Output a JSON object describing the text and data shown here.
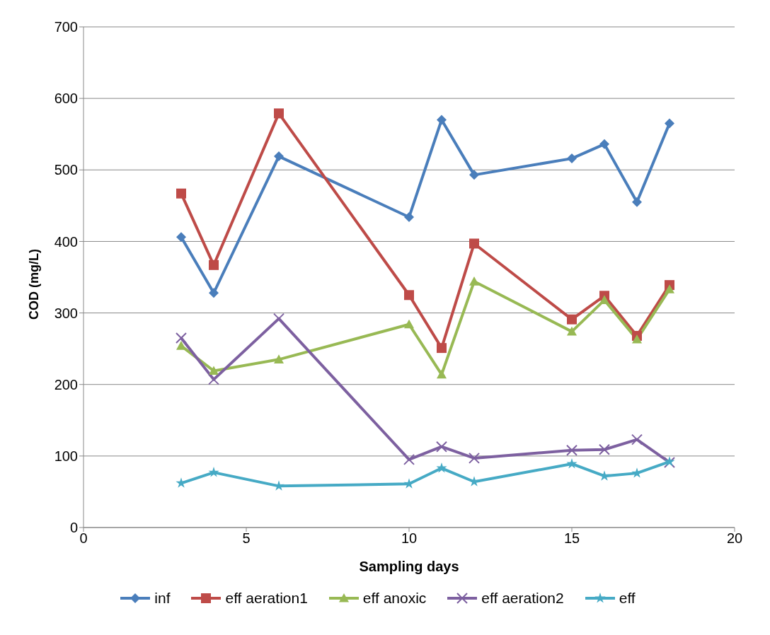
{
  "chart_data": {
    "type": "line",
    "xlabel": "Sampling days",
    "ylabel": "COD (mg/L)",
    "x": [
      3,
      4,
      6,
      10,
      11,
      12,
      15,
      16,
      17,
      18
    ],
    "xlim": [
      0,
      20
    ],
    "xticks": [
      0,
      5,
      10,
      15,
      20
    ],
    "ylim": [
      0,
      700
    ],
    "yticks": [
      0,
      100,
      200,
      300,
      400,
      500,
      600,
      700
    ],
    "grid": "y",
    "legend": "bottom",
    "series": [
      {
        "name": "inf",
        "color": "#4a7ebb",
        "marker": "diamond",
        "values": [
          406,
          328,
          519,
          434,
          570,
          493,
          516,
          536,
          455,
          565
        ]
      },
      {
        "name": "eff aeration1",
        "color": "#be4b48",
        "marker": "square",
        "values": [
          467,
          367,
          579,
          325,
          251,
          397,
          291,
          324,
          268,
          339
        ]
      },
      {
        "name": "eff anoxic",
        "color": "#98b954",
        "marker": "triangle",
        "values": [
          254,
          219,
          235,
          284,
          214,
          344,
          274,
          318,
          263,
          333
        ]
      },
      {
        "name": "eff aeration2",
        "color": "#7d60a0",
        "marker": "cross",
        "values": [
          265,
          207,
          292,
          95,
          113,
          97,
          108,
          109,
          123,
          91
        ]
      },
      {
        "name": "eff",
        "color": "#46aac5",
        "marker": "star",
        "values": [
          62,
          77,
          58,
          61,
          83,
          64,
          89,
          72,
          76,
          92
        ]
      }
    ]
  }
}
